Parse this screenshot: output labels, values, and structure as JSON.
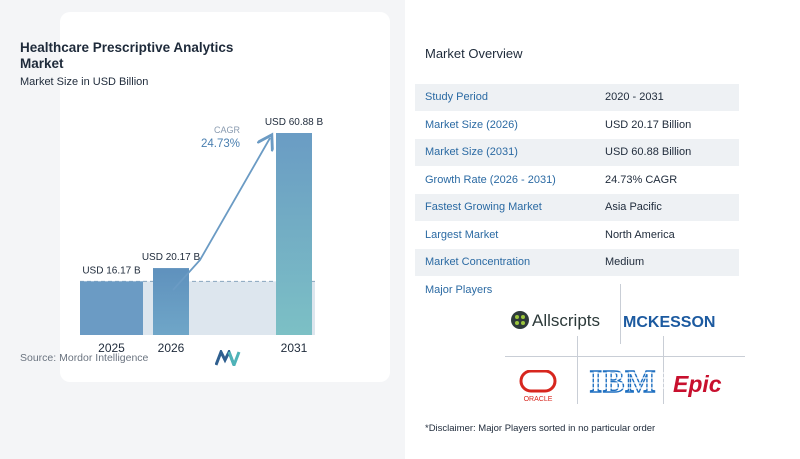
{
  "chart_data": {
    "type": "bar",
    "title": "Healthcare Prescriptive Analytics Market",
    "subtitle": "Market Size in USD Billion",
    "categories": [
      "2025",
      "2026",
      "2031"
    ],
    "values": [
      16.17,
      20.17,
      60.88
    ],
    "data_labels": [
      "USD 16.17 B",
      "USD 20.17 B",
      "USD 60.88 B"
    ],
    "ylim": [
      0,
      65
    ],
    "cagr_label": "CAGR",
    "cagr_value": "24.73%",
    "colors": {
      "bar_light": "#6b9bc4",
      "bar_dark": "#4a7fb0",
      "bar_2031_top": "#6fa2c7",
      "bar_2031_bottom": "#7fc3c6",
      "band": "#dde6ee",
      "arrow": "#6b9bc4"
    }
  },
  "source": "Source:  Mordor Intelligence",
  "overview": {
    "title": "Market Overview",
    "rows": [
      {
        "key": "Study Period",
        "value": "2020 - 2031"
      },
      {
        "key": "Market Size (2026)",
        "value": "USD 20.17 Billion"
      },
      {
        "key": "Market Size (2031)",
        "value": "USD 60.88 Billion"
      },
      {
        "key": "Growth Rate (2026 - 2031)",
        "value": "24.73% CAGR"
      },
      {
        "key": "Fastest Growing Market",
        "value": "Asia Pacific"
      },
      {
        "key": "Largest Market",
        "value": "North America"
      },
      {
        "key": "Market Concentration",
        "value": "Medium"
      }
    ]
  },
  "players": {
    "label": "Major Players",
    "logos": {
      "allscripts": "Allscripts",
      "mckesson": "MCKESSON",
      "oracle": "ORACLE",
      "ibm": "IBM",
      "epic": "Epic"
    }
  },
  "disclaimer": "*Disclaimer: Major Players sorted in no particular order"
}
